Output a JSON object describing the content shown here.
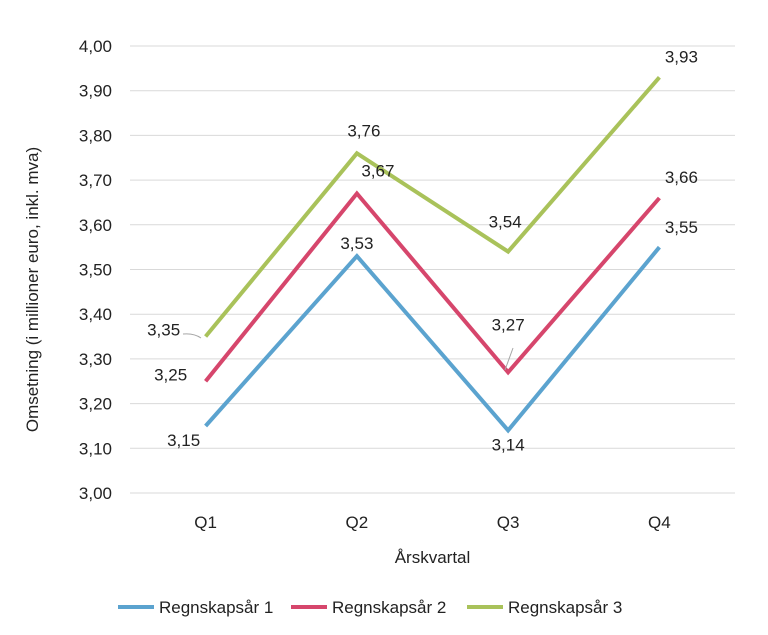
{
  "chart_data": {
    "type": "line",
    "categories": [
      "Q1",
      "Q2",
      "Q3",
      "Q4"
    ],
    "xlabel": "Årskvartal",
    "ylabel": "Omsetning (i millioner euro, inkl. mva)",
    "ylim": [
      3.0,
      4.0
    ],
    "ytick_step": 0.1,
    "ytick_labels": [
      "3,00",
      "3,10",
      "3,20",
      "3,30",
      "3,40",
      "3,50",
      "3,60",
      "3,70",
      "3,80",
      "3,90",
      "4,00"
    ],
    "grid": true,
    "legend_position": "bottom",
    "series": [
      {
        "name": "Regnskapsår 1",
        "color": "#5ba3cf",
        "values": [
          3.15,
          3.53,
          3.14,
          3.55
        ],
        "labels": [
          "3,15",
          "3,53",
          "3,14",
          "3,55"
        ]
      },
      {
        "name": "Regnskapsår 2",
        "color": "#d6466c",
        "values": [
          3.25,
          3.67,
          3.27,
          3.66
        ],
        "labels": [
          "3,25",
          "3,67",
          "3,27",
          "3,66"
        ]
      },
      {
        "name": "Regnskapsår 3",
        "color": "#a9c25a",
        "values": [
          3.35,
          3.76,
          3.54,
          3.93
        ],
        "labels": [
          "3,35",
          "3,76",
          "3,54",
          "3,93"
        ]
      }
    ]
  }
}
